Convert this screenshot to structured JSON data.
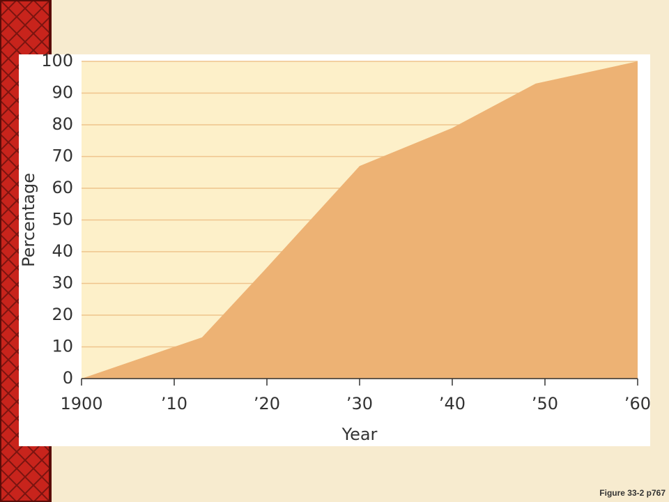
{
  "chart_data": {
    "type": "area",
    "x_label": "Year",
    "y_label": "Percentage",
    "x": [
      1900,
      1907,
      1913,
      1920,
      1930,
      1940,
      1949,
      1960
    ],
    "values": [
      0,
      7,
      13,
      35,
      67,
      79,
      93,
      100
    ],
    "color": "#edb274",
    "xlim": [
      1900,
      1960
    ],
    "xticks": [
      1900,
      {
        "value": 1910,
        "label": "’10"
      },
      {
        "value": 1920,
        "label": "’20"
      },
      {
        "value": 1930,
        "label": "’30"
      },
      {
        "value": 1940,
        "label": "’40"
      },
      {
        "value": 1950,
        "label": "’50"
      },
      {
        "value": 1960,
        "label": "’60"
      }
    ],
    "ylim": [
      0,
      100
    ],
    "yticks": [
      0,
      10,
      20,
      30,
      40,
      50,
      60,
      70,
      80,
      90,
      100
    ],
    "grid": true
  },
  "figure_label": "Figure 33-2 p767"
}
